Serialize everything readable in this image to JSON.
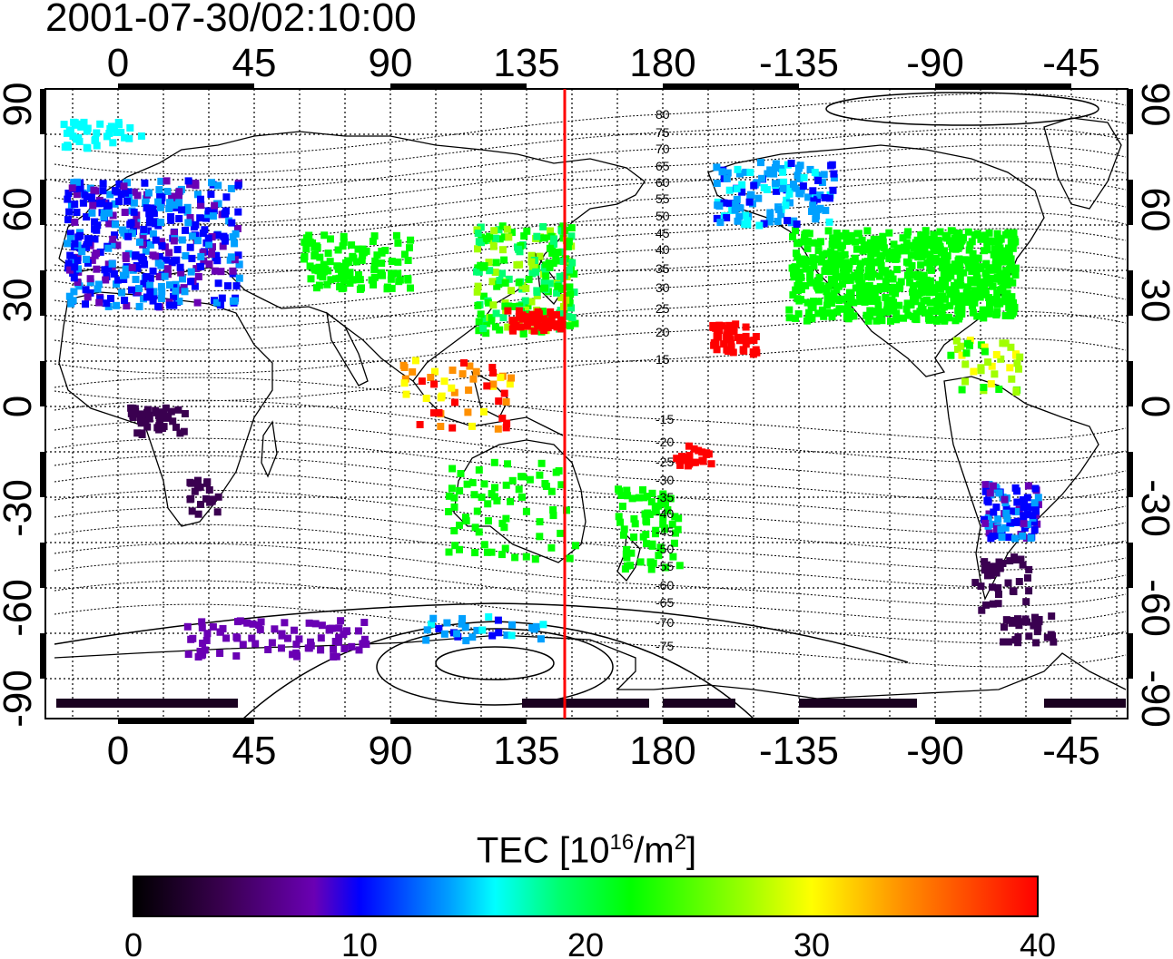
{
  "timestamp": "2001-07-30/02:10:00",
  "lon_ticks": [
    "0",
    "45",
    "90",
    "135",
    "180",
    "-135",
    "-90",
    "-45"
  ],
  "lat_ticks": [
    "90",
    "60",
    "30",
    "0",
    "-30",
    "-60",
    "-90"
  ],
  "mlat_labels": [
    "80",
    "75",
    "70",
    "65",
    "60",
    "55",
    "50",
    "45",
    "40",
    "35",
    "30",
    "25",
    "20",
    "15",
    "-15",
    "-20",
    "-25",
    "-30",
    "-35",
    "-40",
    "-45",
    "-50",
    "-55",
    "-60",
    "-65",
    "-70",
    "-75"
  ],
  "colorbar": {
    "title_prefix": "TEC  [10",
    "title_exp": "16",
    "title_mid": "/m",
    "title_exp2": "2",
    "title_suffix": "]",
    "tick_labels": [
      "0",
      "10",
      "20",
      "30",
      "40"
    ],
    "range": [
      0,
      40
    ],
    "colors": [
      "#000000",
      "#3a0050",
      "#6a00b4",
      "#0000ff",
      "#00a0ff",
      "#00ffff",
      "#00ff70",
      "#00ff00",
      "#a0ff00",
      "#ffff00",
      "#ff9000",
      "#ff0000"
    ]
  },
  "marker_line_color": "#ff0000",
  "marker_longitude": 147
}
